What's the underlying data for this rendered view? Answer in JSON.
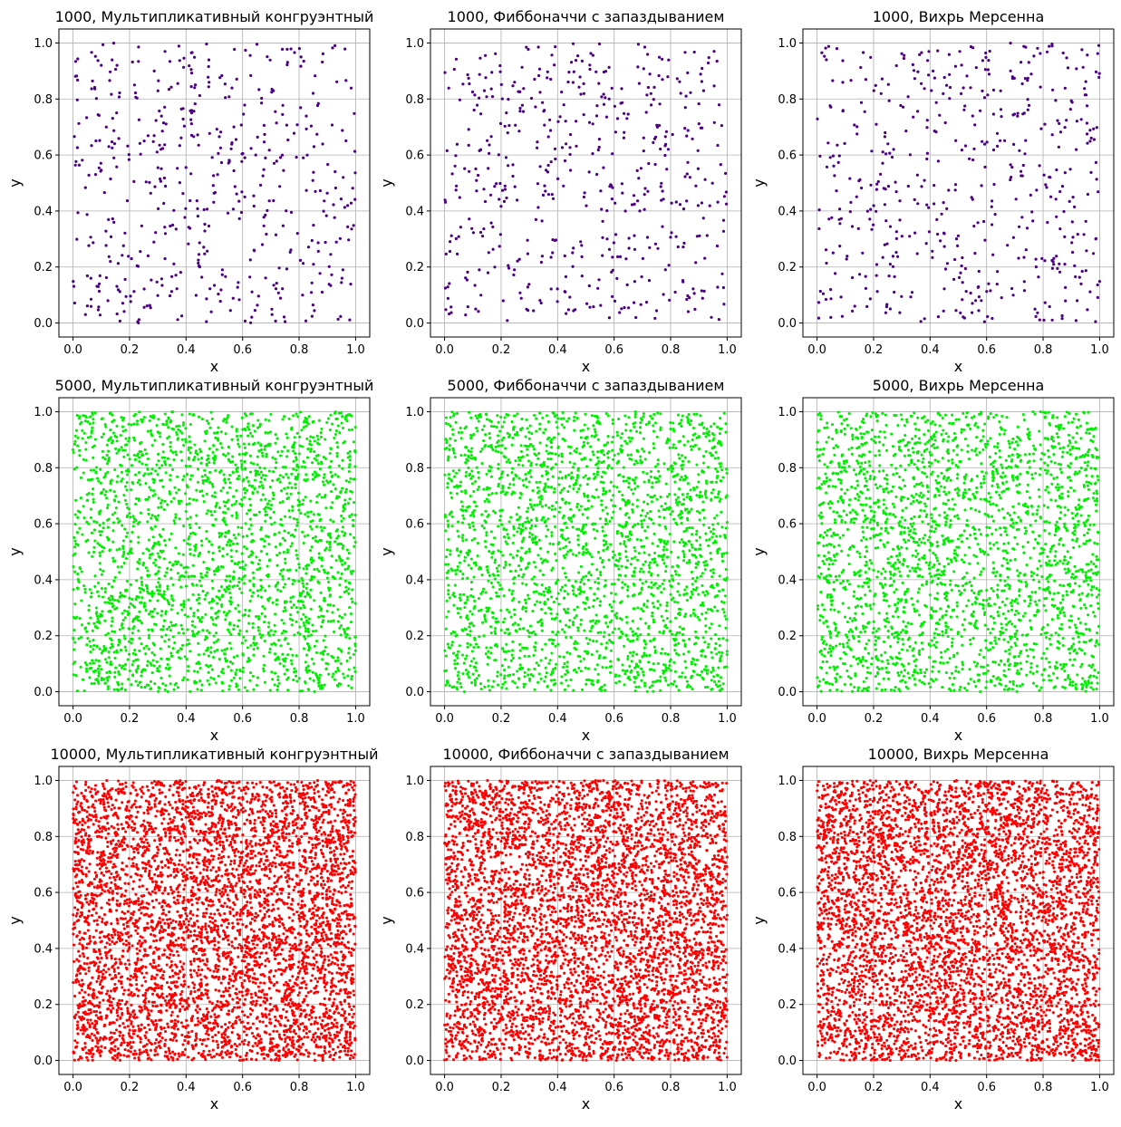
{
  "chart_data": [
    {
      "type": "scatter",
      "title": "1000, Мультипликативный конгруэнтный",
      "xlabel": "x",
      "ylabel": "y",
      "n": 1000,
      "color": "#4b0082",
      "seed": 11,
      "xlim": [
        -0.05,
        1.05
      ],
      "ylim": [
        -0.05,
        1.05
      ],
      "xticks": [
        "0.0",
        "0.2",
        "0.4",
        "0.6",
        "0.8",
        "1.0"
      ],
      "yticks": [
        "0.0",
        "0.2",
        "0.4",
        "0.6",
        "0.8",
        "1.0"
      ],
      "grid": true
    },
    {
      "type": "scatter",
      "title": "1000, Фиббоначчи с запаздыванием",
      "xlabel": "x",
      "ylabel": "y",
      "n": 1000,
      "color": "#4b0082",
      "seed": 22,
      "xlim": [
        -0.05,
        1.05
      ],
      "ylim": [
        -0.05,
        1.05
      ],
      "xticks": [
        "0.0",
        "0.2",
        "0.4",
        "0.6",
        "0.8",
        "1.0"
      ],
      "yticks": [
        "0.0",
        "0.2",
        "0.4",
        "0.6",
        "0.8",
        "1.0"
      ],
      "grid": true
    },
    {
      "type": "scatter",
      "title": "1000, Вихрь Мерсенна",
      "xlabel": "x",
      "ylabel": "y",
      "n": 1000,
      "color": "#4b0082",
      "seed": 33,
      "xlim": [
        -0.05,
        1.05
      ],
      "ylim": [
        -0.05,
        1.05
      ],
      "xticks": [
        "0.0",
        "0.2",
        "0.4",
        "0.6",
        "0.8",
        "1.0"
      ],
      "yticks": [
        "0.0",
        "0.2",
        "0.4",
        "0.6",
        "0.8",
        "1.0"
      ],
      "grid": true
    },
    {
      "type": "scatter",
      "title": "5000, Мультипликативный конгруэнтный",
      "xlabel": "x",
      "ylabel": "y",
      "n": 5000,
      "color": "#00ee00",
      "seed": 44,
      "xlim": [
        -0.05,
        1.05
      ],
      "ylim": [
        -0.05,
        1.05
      ],
      "xticks": [
        "0.0",
        "0.2",
        "0.4",
        "0.6",
        "0.8",
        "1.0"
      ],
      "yticks": [
        "0.0",
        "0.2",
        "0.4",
        "0.6",
        "0.8",
        "1.0"
      ],
      "grid": true
    },
    {
      "type": "scatter",
      "title": "5000, Фиббоначчи с запаздыванием",
      "xlabel": "x",
      "ylabel": "y",
      "n": 5000,
      "color": "#00ee00",
      "seed": 55,
      "xlim": [
        -0.05,
        1.05
      ],
      "ylim": [
        -0.05,
        1.05
      ],
      "xticks": [
        "0.0",
        "0.2",
        "0.4",
        "0.6",
        "0.8",
        "1.0"
      ],
      "yticks": [
        "0.0",
        "0.2",
        "0.4",
        "0.6",
        "0.8",
        "1.0"
      ],
      "grid": true
    },
    {
      "type": "scatter",
      "title": "5000, Вихрь Мерсенна",
      "xlabel": "x",
      "ylabel": "y",
      "n": 5000,
      "color": "#00ee00",
      "seed": 66,
      "xlim": [
        -0.05,
        1.05
      ],
      "ylim": [
        -0.05,
        1.05
      ],
      "xticks": [
        "0.0",
        "0.2",
        "0.4",
        "0.6",
        "0.8",
        "1.0"
      ],
      "yticks": [
        "0.0",
        "0.2",
        "0.4",
        "0.6",
        "0.8",
        "1.0"
      ],
      "grid": true
    },
    {
      "type": "scatter",
      "title": "10000, Мультипликативный конгруэнтный",
      "xlabel": "x",
      "ylabel": "y",
      "n": 10000,
      "color": "#ff0000",
      "seed": 77,
      "xlim": [
        -0.05,
        1.05
      ],
      "ylim": [
        -0.05,
        1.05
      ],
      "xticks": [
        "0.0",
        "0.2",
        "0.4",
        "0.6",
        "0.8",
        "1.0"
      ],
      "yticks": [
        "0.0",
        "0.2",
        "0.4",
        "0.6",
        "0.8",
        "1.0"
      ],
      "grid": true
    },
    {
      "type": "scatter",
      "title": "10000, Фиббоначчи с запаздыванием",
      "xlabel": "x",
      "ylabel": "y",
      "n": 10000,
      "color": "#ff0000",
      "seed": 88,
      "xlim": [
        -0.05,
        1.05
      ],
      "ylim": [
        -0.05,
        1.05
      ],
      "xticks": [
        "0.0",
        "0.2",
        "0.4",
        "0.6",
        "0.8",
        "1.0"
      ],
      "yticks": [
        "0.0",
        "0.2",
        "0.4",
        "0.6",
        "0.8",
        "1.0"
      ],
      "grid": true
    },
    {
      "type": "scatter",
      "title": "10000, Вихрь Мерсенна",
      "xlabel": "x",
      "ylabel": "y",
      "n": 10000,
      "color": "#ff0000",
      "seed": 99,
      "xlim": [
        -0.05,
        1.05
      ],
      "ylim": [
        -0.05,
        1.05
      ],
      "xticks": [
        "0.0",
        "0.2",
        "0.4",
        "0.6",
        "0.8",
        "1.0"
      ],
      "yticks": [
        "0.0",
        "0.2",
        "0.4",
        "0.6",
        "0.8",
        "1.0"
      ],
      "grid": true
    }
  ]
}
